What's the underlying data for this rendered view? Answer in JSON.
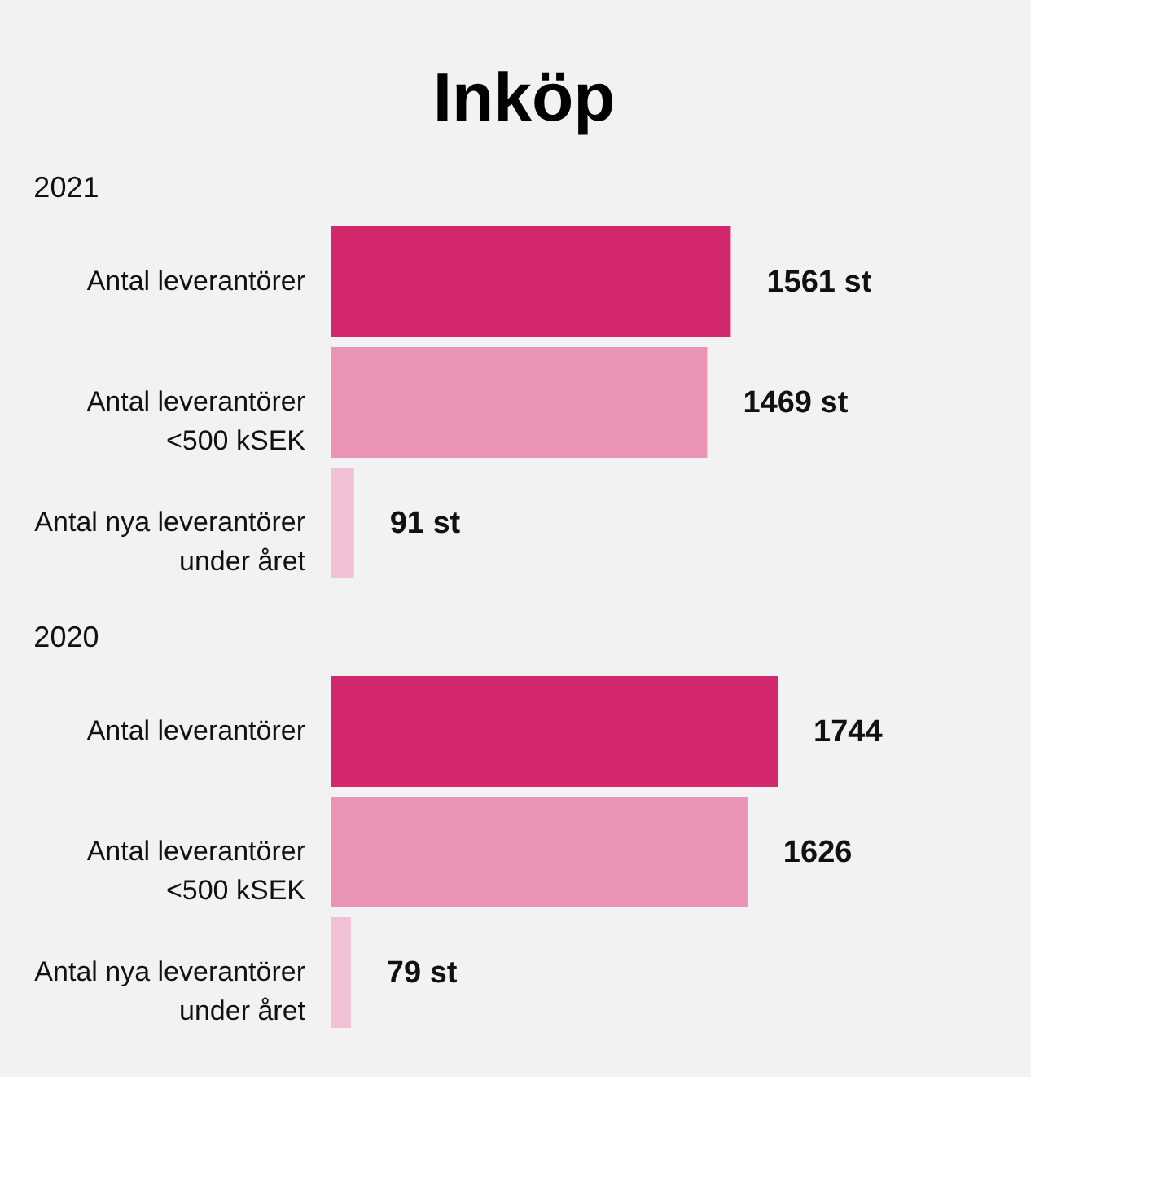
{
  "chart_data": [
    {
      "type": "bar",
      "orientation": "horizontal",
      "title": "Inköp",
      "subtitle": "2021",
      "categories": [
        "Antal leverantörer",
        "Antal leverantörer <500 kSEK",
        "Antal nya leverantörer under året"
      ],
      "values": [
        1561,
        1469,
        91
      ],
      "colors": [
        "#d4286e",
        "#e993b5",
        "#f2c0d4"
      ],
      "value_labels": [
        "1561 st",
        "1469 st",
        "91 st"
      ]
    },
    {
      "type": "bar",
      "orientation": "horizontal",
      "subtitle": "2020",
      "categories": [
        "Antal leverantörer",
        "Antal leverantörer <500 kSEK",
        "Antal nya leverantörer under året"
      ],
      "values": [
        1744,
        1626,
        79
      ],
      "colors": [
        "#d4286e",
        "#e993b5",
        "#f2c0d4"
      ],
      "value_labels": [
        "1744",
        "1626",
        "79 st"
      ]
    }
  ]
}
